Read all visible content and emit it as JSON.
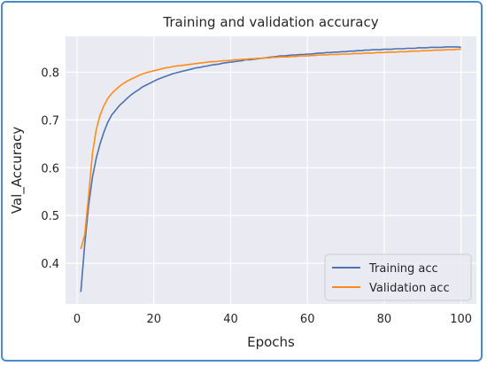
{
  "chart_data": {
    "type": "line",
    "title": "Training and validation accuracy",
    "xlabel": "Epochs",
    "ylabel": "Val_Accuracy",
    "xlim": [
      -3,
      104
    ],
    "ylim": [
      0.315,
      0.875
    ],
    "xticks": [
      0,
      20,
      40,
      60,
      80,
      100
    ],
    "yticks": [
      0.4,
      0.5,
      0.6,
      0.7,
      0.8
    ],
    "grid": true,
    "legend_position": "lower-right",
    "background": "#eaeaf2",
    "x": [
      1,
      2,
      3,
      4,
      5,
      6,
      7,
      8,
      9,
      10,
      11,
      12,
      13,
      14,
      15,
      16,
      17,
      18,
      19,
      20,
      21,
      22,
      23,
      24,
      25,
      26,
      27,
      28,
      29,
      30,
      31,
      32,
      33,
      34,
      35,
      36,
      37,
      38,
      39,
      40,
      41,
      42,
      43,
      44,
      45,
      46,
      47,
      48,
      49,
      50,
      51,
      52,
      53,
      54,
      55,
      56,
      57,
      58,
      59,
      60,
      61,
      62,
      63,
      64,
      65,
      66,
      67,
      68,
      69,
      70,
      71,
      72,
      73,
      74,
      75,
      76,
      77,
      78,
      79,
      80,
      81,
      82,
      83,
      84,
      85,
      86,
      87,
      88,
      89,
      90,
      91,
      92,
      93,
      94,
      95,
      96,
      97,
      98,
      99,
      100
    ],
    "series": [
      {
        "name": "Training acc",
        "color": "#4c72b0",
        "values": [
          0.34,
          0.44,
          0.52,
          0.58,
          0.62,
          0.65,
          0.675,
          0.695,
          0.71,
          0.72,
          0.73,
          0.737,
          0.745,
          0.752,
          0.758,
          0.763,
          0.769,
          0.773,
          0.777,
          0.781,
          0.785,
          0.788,
          0.791,
          0.794,
          0.797,
          0.799,
          0.801,
          0.803,
          0.805,
          0.807,
          0.809,
          0.81,
          0.812,
          0.813,
          0.815,
          0.816,
          0.817,
          0.819,
          0.82,
          0.821,
          0.822,
          0.823,
          0.824,
          0.826,
          0.826,
          0.827,
          0.828,
          0.829,
          0.83,
          0.831,
          0.832,
          0.833,
          0.834,
          0.834,
          0.835,
          0.836,
          0.836,
          0.837,
          0.837,
          0.838,
          0.838,
          0.839,
          0.84,
          0.84,
          0.841,
          0.841,
          0.842,
          0.842,
          0.843,
          0.843,
          0.844,
          0.844,
          0.845,
          0.845,
          0.846,
          0.846,
          0.847,
          0.847,
          0.847,
          0.848,
          0.848,
          0.848,
          0.849,
          0.849,
          0.849,
          0.85,
          0.85,
          0.85,
          0.851,
          0.851,
          0.851,
          0.852,
          0.852,
          0.852,
          0.852,
          0.853,
          0.853,
          0.853,
          0.853,
          0.852
        ]
      },
      {
        "name": "Validation acc",
        "color": "#ff8c1a",
        "values": [
          0.43,
          0.46,
          0.54,
          0.63,
          0.68,
          0.71,
          0.73,
          0.745,
          0.755,
          0.763,
          0.77,
          0.776,
          0.781,
          0.785,
          0.789,
          0.793,
          0.796,
          0.799,
          0.801,
          0.803,
          0.805,
          0.807,
          0.809,
          0.81,
          0.812,
          0.813,
          0.814,
          0.815,
          0.816,
          0.817,
          0.818,
          0.819,
          0.82,
          0.821,
          0.822,
          0.822,
          0.823,
          0.824,
          0.824,
          0.825,
          0.826,
          0.826,
          0.827,
          0.827,
          0.828,
          0.828,
          0.829,
          0.829,
          0.83,
          0.83,
          0.831,
          0.831,
          0.832,
          0.832,
          0.832,
          0.833,
          0.833,
          0.834,
          0.834,
          0.834,
          0.835,
          0.835,
          0.836,
          0.836,
          0.836,
          0.837,
          0.837,
          0.837,
          0.838,
          0.838,
          0.838,
          0.839,
          0.839,
          0.839,
          0.84,
          0.84,
          0.84,
          0.841,
          0.841,
          0.841,
          0.842,
          0.842,
          0.842,
          0.843,
          0.843,
          0.843,
          0.844,
          0.844,
          0.844,
          0.845,
          0.845,
          0.845,
          0.846,
          0.846,
          0.846,
          0.847,
          0.847,
          0.847,
          0.848,
          0.848
        ]
      }
    ]
  }
}
